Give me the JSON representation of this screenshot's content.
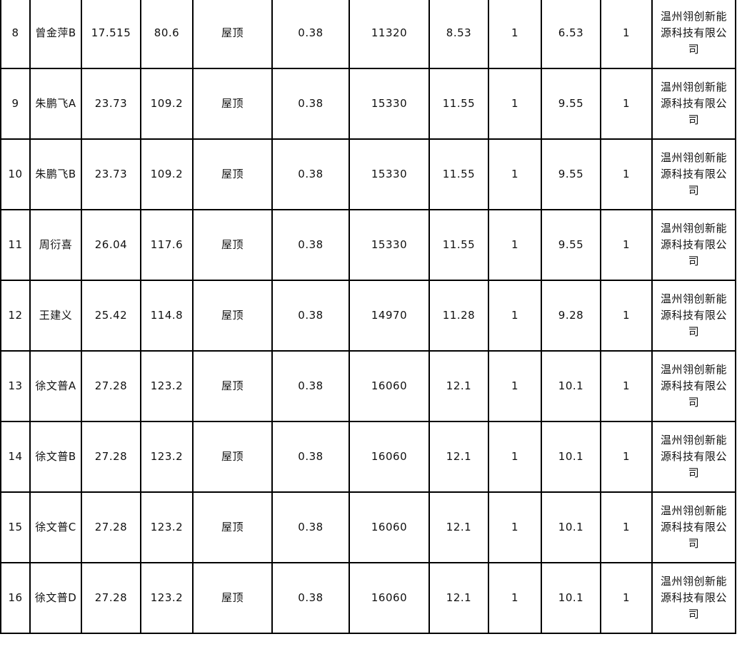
{
  "rows": [
    {
      "no": "8",
      "name": "曾金萍B",
      "c3": "17.515",
      "c4": "80.6",
      "type": "屋顶",
      "c6": "0.38",
      "c7": "11320",
      "c8": "8.53",
      "c9": "1",
      "c10": "6.53",
      "c11": "1",
      "company": "温州翎创新能源科技有限公司"
    },
    {
      "no": "9",
      "name": "朱鹏飞A",
      "c3": "23.73",
      "c4": "109.2",
      "type": "屋顶",
      "c6": "0.38",
      "c7": "15330",
      "c8": "11.55",
      "c9": "1",
      "c10": "9.55",
      "c11": "1",
      "company": "温州翎创新能源科技有限公司"
    },
    {
      "no": "10",
      "name": "朱鹏飞B",
      "c3": "23.73",
      "c4": "109.2",
      "type": "屋顶",
      "c6": "0.38",
      "c7": "15330",
      "c8": "11.55",
      "c9": "1",
      "c10": "9.55",
      "c11": "1",
      "company": "温州翎创新能源科技有限公司"
    },
    {
      "no": "11",
      "name": "周衍喜",
      "c3": "26.04",
      "c4": "117.6",
      "type": "屋顶",
      "c6": "0.38",
      "c7": "15330",
      "c8": "11.55",
      "c9": "1",
      "c10": "9.55",
      "c11": "1",
      "company": "温州翎创新能源科技有限公司"
    },
    {
      "no": "12",
      "name": "王建义",
      "c3": "25.42",
      "c4": "114.8",
      "type": "屋顶",
      "c6": "0.38",
      "c7": "14970",
      "c8": "11.28",
      "c9": "1",
      "c10": "9.28",
      "c11": "1",
      "company": "温州翎创新能源科技有限公司"
    },
    {
      "no": "13",
      "name": "徐文普A",
      "c3": "27.28",
      "c4": "123.2",
      "type": "屋顶",
      "c6": "0.38",
      "c7": "16060",
      "c8": "12.1",
      "c9": "1",
      "c10": "10.1",
      "c11": "1",
      "company": "温州翎创新能源科技有限公司"
    },
    {
      "no": "14",
      "name": "徐文普B",
      "c3": "27.28",
      "c4": "123.2",
      "type": "屋顶",
      "c6": "0.38",
      "c7": "16060",
      "c8": "12.1",
      "c9": "1",
      "c10": "10.1",
      "c11": "1",
      "company": "温州翎创新能源科技有限公司"
    },
    {
      "no": "15",
      "name": "徐文普C",
      "c3": "27.28",
      "c4": "123.2",
      "type": "屋顶",
      "c6": "0.38",
      "c7": "16060",
      "c8": "12.1",
      "c9": "1",
      "c10": "10.1",
      "c11": "1",
      "company": "温州翎创新能源科技有限公司"
    },
    {
      "no": "16",
      "name": "徐文普D",
      "c3": "27.28",
      "c4": "123.2",
      "type": "屋顶",
      "c6": "0.38",
      "c7": "16060",
      "c8": "12.1",
      "c9": "1",
      "c10": "10.1",
      "c11": "1",
      "company": "温州翎创新能源科技有限公司"
    }
  ]
}
